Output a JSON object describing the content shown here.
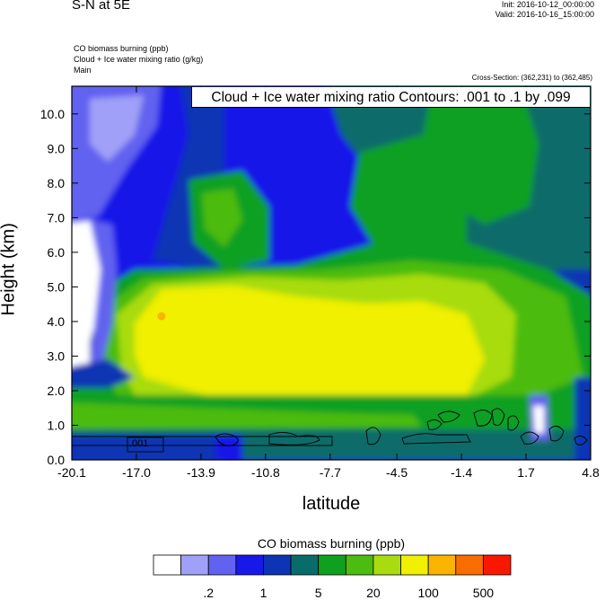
{
  "header": {
    "title": "S-N at 5E",
    "init": "Init: 2016-10-12_00:00:00",
    "valid": "Valid: 2016-10-16_15:00:00",
    "fields": [
      "CO biomass burning   (ppb)",
      "Cloud + Ice water mixing ratio   (g/kg)",
      "Main"
    ],
    "cross_section": "Cross-Section: (362,231) to (362,485)"
  },
  "chart_data": {
    "type": "heatmap",
    "title": "S-N at 5E",
    "annotation": "Cloud + Ice water mixing ratio Contours: .001 to .1 by .099",
    "contour_label": ".001",
    "xlabel": "latitude",
    "ylabel": "Height (km)",
    "xlim": [
      -20.1,
      4.8
    ],
    "ylim": [
      0.0,
      10.8
    ],
    "xticks": [
      "-20.1",
      "-17.0",
      "-13.9",
      "-10.8",
      "-7.7",
      "-4.5",
      "-1.4",
      "1.7",
      "4.8"
    ],
    "yticks": [
      "0.0",
      "1.0",
      "2.0",
      "3.0",
      "4.0",
      "5.0",
      "6.0",
      "7.0",
      "8.0",
      "9.0",
      "10.0"
    ],
    "colorbar": {
      "label": "CO biomass burning  (ppb)",
      "colors": [
        "#ffffff",
        "#a0a0f8",
        "#6262f0",
        "#1818e8",
        "#0c34b4",
        "#0a6c6a",
        "#10a020",
        "#4cbc10",
        "#a8dc10",
        "#f0f000",
        "#f8b400",
        "#f86c00",
        "#f81800"
      ],
      "tick_labels": [
        ".2",
        "1",
        "5",
        "20",
        "100",
        "500"
      ]
    },
    "regions": [
      {
        "name": "upper-atmosphere-blue",
        "x": [
          -20.1,
          -9.0
        ],
        "y": [
          5.5,
          10.8
        ],
        "level": 4
      },
      {
        "name": "upper-north-green",
        "x": [
          -6.0,
          4.8
        ],
        "y": [
          5.0,
          10.8
        ],
        "level": 6
      },
      {
        "name": "mid-plume-green",
        "x": [
          -17.5,
          4.8
        ],
        "y": [
          1.0,
          5.5
        ],
        "level": 7
      },
      {
        "name": "plume-yellow-green",
        "x": [
          -17.0,
          -0.5
        ],
        "y": [
          1.5,
          5.0
        ],
        "level": 8
      },
      {
        "name": "plume-core-yellow",
        "x": [
          -15.5,
          -2.5
        ],
        "y": [
          1.0,
          4.5
        ],
        "level": 9
      },
      {
        "name": "plume-max-orange",
        "x": [
          -15.9,
          -15.6
        ],
        "y": [
          4.0,
          4.2
        ],
        "level": 10
      },
      {
        "name": "boundary-layer",
        "x": [
          -20.1,
          4.8
        ],
        "y": [
          0.0,
          1.3
        ],
        "level": 7
      },
      {
        "name": "clean-air-southwest",
        "x": [
          -20.1,
          -18.5
        ],
        "y": [
          3.0,
          6.5
        ],
        "level": 0
      }
    ]
  }
}
